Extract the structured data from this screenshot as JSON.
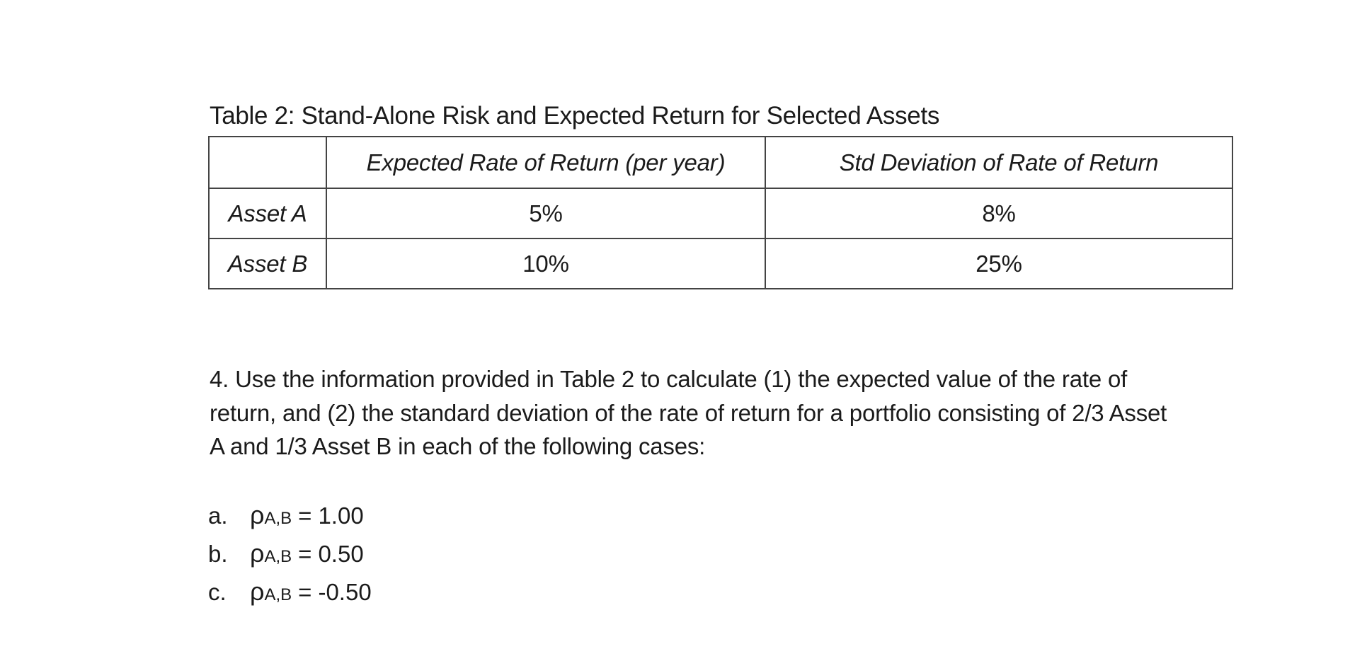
{
  "page": {
    "background": "#ffffff",
    "text_color": "#1b1b1b",
    "table_border_color": "#444444"
  },
  "table_section": {
    "caption": "Table 2: Stand-Alone Risk and Expected Return for Selected Assets",
    "table": {
      "header": [
        "",
        "Expected Rate of Return (per year)",
        "Std Deviation of Rate of Return"
      ],
      "rows": [
        {
          "label": "Asset A",
          "expected_return": "5%",
          "std_deviation": "8%"
        },
        {
          "label": "Asset B",
          "expected_return": "10%",
          "std_deviation": "25%"
        }
      ]
    }
  },
  "question": {
    "lines": [
      "4. Use the information provided in Table 2 to calculate (1) the expected value of the rate of",
      "return, and (2) the standard deviation of the rate of return for a portfolio consisting of 2/3 Asset",
      "A and 1/3 Asset B in each of the following cases:"
    ]
  },
  "cases": [
    {
      "marker": "a.",
      "symbol": "ρ",
      "subscript": "A,B",
      "relation": "=",
      "value": "1.00"
    },
    {
      "marker": "b.",
      "symbol": "ρ",
      "subscript": "A,B",
      "relation": "=",
      "value": "0.50"
    },
    {
      "marker": "c.",
      "symbol": "ρ",
      "subscript": "A,B",
      "relation": "=",
      "value": "-0.50"
    }
  ]
}
